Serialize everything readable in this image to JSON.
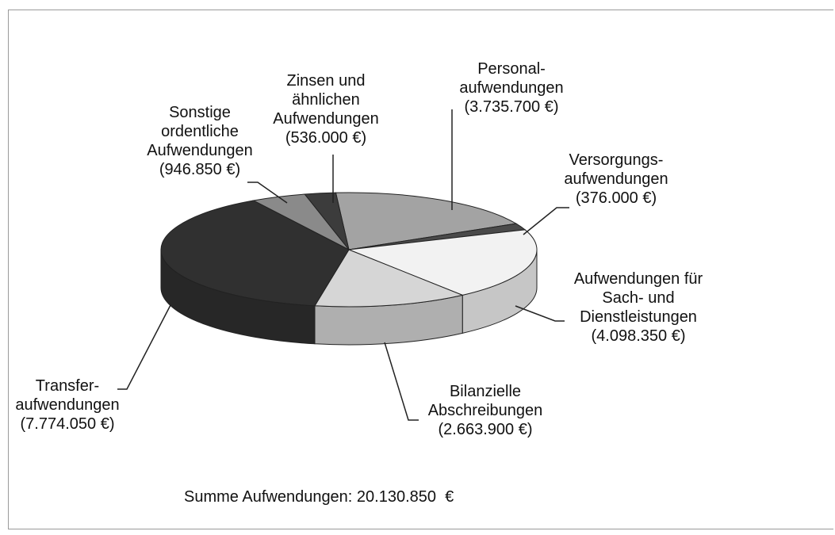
{
  "chart_data": {
    "type": "pie3d",
    "categories": [
      "Personal-\naufwendungen",
      "Versorgungs-\naufwendungen",
      "Aufwendungen für\nSach- und\nDienstleistungen",
      "Bilanzielle\nAbschreibungen",
      "Transfer-\naufwendungen",
      "Sonstige\nordentliche\nAufwendungen",
      "Zinsen und\nähnlichen\nAufwendungen"
    ],
    "values": [
      3735700,
      376000,
      4098350,
      2663900,
      7774050,
      946850,
      536000
    ],
    "value_labels": [
      "(3.735.700 €)",
      "(376.000 €)",
      "(4.098.350 €)",
      "(2.663.900 €)",
      "(7.774.050 €)",
      "(946.850 €)",
      "(536.000 €)"
    ],
    "colors": [
      "#a3a3a3",
      "#4a4a4a",
      "#f2f2f2",
      "#d6d6d6",
      "#303030",
      "#8a8a8a",
      "#3c3c3c"
    ],
    "total_label": "Summe Aufwendungen: 20.130.850  €"
  }
}
